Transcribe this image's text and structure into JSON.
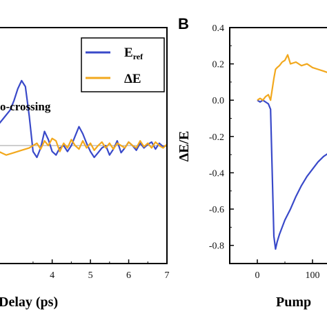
{
  "colors": {
    "series_blue": "#3949c9",
    "series_orange": "#f2a81d",
    "zero_line": "#9e9e9e"
  },
  "chart_data": [
    {
      "type": "line",
      "panel": "",
      "xlabel": "Delay (ps)",
      "xlabel_visible": "Delay (ps)",
      "ylabel": "",
      "xlim": [
        2.6,
        7.0
      ],
      "ylim": [
        -1.0,
        1.0
      ],
      "xticks": [
        4,
        5,
        6,
        7
      ],
      "grid": false,
      "legend": "top-right",
      "annotation": "o-crossing",
      "series": [
        {
          "name": "E",
          "name_sub": "ref",
          "color": "#3949c9",
          "x": [
            2.6,
            2.75,
            2.9,
            3.0,
            3.1,
            3.2,
            3.3,
            3.4,
            3.5,
            3.6,
            3.7,
            3.8,
            3.9,
            4.0,
            4.1,
            4.2,
            4.3,
            4.4,
            4.5,
            4.6,
            4.7,
            4.8,
            4.9,
            5.0,
            5.1,
            5.2,
            5.3,
            5.4,
            5.5,
            5.6,
            5.7,
            5.8,
            5.9,
            6.0,
            6.1,
            6.2,
            6.3,
            6.4,
            6.5,
            6.6,
            6.7,
            6.8,
            6.9,
            7.0
          ],
          "y": [
            0.18,
            0.24,
            0.3,
            0.38,
            0.48,
            0.55,
            0.5,
            0.25,
            -0.05,
            -0.1,
            -0.02,
            0.12,
            0.05,
            -0.05,
            -0.08,
            -0.02,
            0.0,
            -0.05,
            0.0,
            0.08,
            0.16,
            0.1,
            0.02,
            -0.05,
            -0.1,
            -0.06,
            -0.02,
            0.0,
            -0.08,
            -0.03,
            0.04,
            -0.06,
            -0.02,
            0.03,
            0.0,
            -0.04,
            0.02,
            -0.02,
            0.01,
            0.03,
            -0.03,
            0.02,
            -0.01,
            0.0
          ]
        },
        {
          "name": "ΔE",
          "color": "#f2a81d",
          "x": [
            2.6,
            2.8,
            3.0,
            3.2,
            3.4,
            3.5,
            3.6,
            3.7,
            3.8,
            3.9,
            4.0,
            4.1,
            4.2,
            4.3,
            4.4,
            4.5,
            4.6,
            4.7,
            4.8,
            4.9,
            5.0,
            5.1,
            5.2,
            5.3,
            5.4,
            5.5,
            5.6,
            5.7,
            5.8,
            5.9,
            6.0,
            6.1,
            6.2,
            6.3,
            6.4,
            6.5,
            6.6,
            6.7,
            6.8,
            6.9,
            7.0
          ],
          "y": [
            -0.05,
            -0.08,
            -0.06,
            -0.04,
            -0.02,
            0.0,
            0.02,
            -0.03,
            0.04,
            0.0,
            0.06,
            0.04,
            -0.05,
            0.02,
            -0.02,
            0.05,
            0.0,
            -0.03,
            0.04,
            -0.02,
            0.02,
            -0.04,
            0.0,
            0.03,
            -0.02,
            0.02,
            -0.03,
            0.02,
            0.0,
            -0.02,
            0.03,
            0.0,
            -0.02,
            0.04,
            -0.01,
            0.02,
            -0.02,
            0.03,
            0.0,
            -0.02,
            0.01
          ]
        }
      ]
    },
    {
      "type": "line",
      "panel": "B",
      "xlabel": "Pump",
      "ylabel": "ΔE/E",
      "xlim": [
        -50,
        150
      ],
      "ylim": [
        -0.9,
        0.4
      ],
      "xticks": [
        0,
        100
      ],
      "yticks": [
        0.4,
        0.2,
        0.0,
        -0.2,
        -0.4,
        -0.6,
        -0.8
      ],
      "grid": false,
      "series": [
        {
          "name": "",
          "color": "#3949c9",
          "x": [
            0,
            5,
            10,
            15,
            20,
            24,
            27,
            30,
            33,
            36,
            40,
            45,
            50,
            60,
            70,
            80,
            90,
            100,
            110,
            120,
            130,
            140,
            150
          ],
          "y": [
            0.0,
            -0.01,
            0.0,
            -0.01,
            -0.02,
            -0.05,
            -0.4,
            -0.75,
            -0.82,
            -0.78,
            -0.74,
            -0.7,
            -0.66,
            -0.6,
            -0.53,
            -0.47,
            -0.42,
            -0.38,
            -0.34,
            -0.31,
            -0.29,
            -0.28,
            -0.27
          ]
        },
        {
          "name": "",
          "color": "#f2a81d",
          "x": [
            0,
            5,
            10,
            15,
            20,
            24,
            27,
            30,
            33,
            36,
            40,
            45,
            50,
            55,
            60,
            70,
            80,
            90,
            100,
            110,
            120,
            130,
            140,
            150
          ],
          "y": [
            0.0,
            0.01,
            0.0,
            0.02,
            0.03,
            0.0,
            0.06,
            0.12,
            0.17,
            0.18,
            0.19,
            0.21,
            0.22,
            0.25,
            0.2,
            0.21,
            0.19,
            0.2,
            0.18,
            0.17,
            0.16,
            0.15,
            0.14,
            0.13
          ]
        }
      ]
    }
  ]
}
